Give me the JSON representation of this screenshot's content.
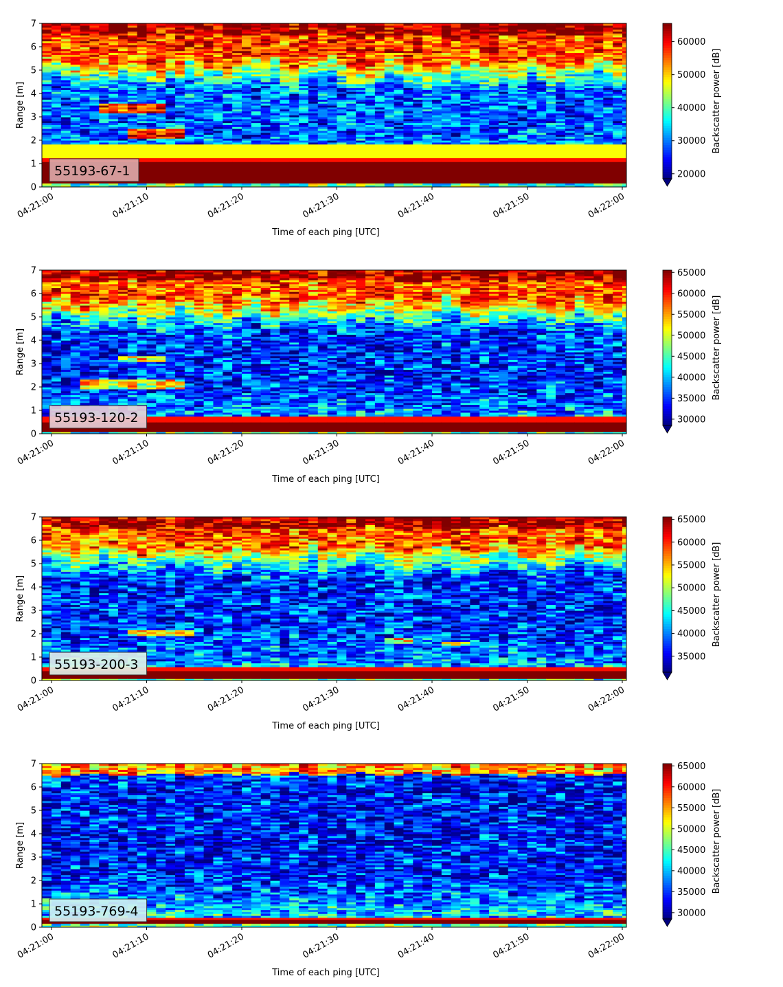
{
  "chart_data": [
    {
      "type": "heatmap",
      "label": "55193-67-1",
      "label_box_color": "#dca8a8",
      "xlabel": "Time of each ping [UTC]",
      "ylabel": "Range [m]",
      "xticks": [
        "04:21:00",
        "04:21:10",
        "04:21:20",
        "04:21:30",
        "04:21:40",
        "04:21:50",
        "04:22:00"
      ],
      "ylim": [
        0,
        7
      ],
      "yticks": [
        0,
        1,
        2,
        3,
        4,
        5,
        6,
        7
      ],
      "colorbar": {
        "label": "Backscatter power [dB]",
        "vmin": 18500,
        "vmax": 65535,
        "ticks": [
          20000,
          30000,
          40000,
          50000,
          60000
        ],
        "extend": "min"
      },
      "profile_shape": "strong",
      "surface_layers": [
        {
          "range": [
            0.2,
            1.05
          ],
          "level": "saturated"
        },
        {
          "range": [
            1.05,
            1.25
          ],
          "level": "high"
        },
        {
          "range": [
            1.25,
            1.8
          ],
          "level": "medium"
        }
      ],
      "upper_layer_from": 4.2,
      "patches": [
        {
          "time": "04:21:08-04:21:13",
          "range": [
            2.1,
            2.5
          ],
          "level": "high"
        },
        {
          "time": "04:21:05-04:21:11",
          "range": [
            3.2,
            3.6
          ],
          "level": "high"
        }
      ]
    },
    {
      "type": "heatmap",
      "label": "55193-120-2",
      "label_box_color": "#e8cfd6",
      "xlabel": "Time of each ping [UTC]",
      "ylabel": "Range [m]",
      "xticks": [
        "04:21:00",
        "04:21:10",
        "04:21:20",
        "04:21:30",
        "04:21:40",
        "04:21:50",
        "04:22:00"
      ],
      "ylim": [
        0,
        7
      ],
      "yticks": [
        0,
        1,
        2,
        3,
        4,
        5,
        6,
        7
      ],
      "colorbar": {
        "label": "Backscatter power [dB]",
        "vmin": 28500,
        "vmax": 65535,
        "ticks": [
          30000,
          35000,
          40000,
          45000,
          50000,
          55000,
          60000,
          65000
        ],
        "extend": "min"
      },
      "profile_shape": "medium",
      "surface_layers": [
        {
          "range": [
            0.1,
            0.5
          ],
          "level": "saturated"
        },
        {
          "range": [
            0.5,
            0.75
          ],
          "level": "high"
        }
      ],
      "upper_layer_from": 4.4,
      "patches": [
        {
          "time": "04:21:03-04:21:13",
          "range": [
            1.9,
            2.3
          ],
          "level": "medium"
        },
        {
          "time": "04:21:07-04:21:11",
          "range": [
            3.1,
            3.3
          ],
          "level": "medium"
        }
      ]
    },
    {
      "type": "heatmap",
      "label": "55193-200-3",
      "label_box_color": "#dff1e8",
      "xlabel": "Time of each ping [UTC]",
      "ylabel": "Range [m]",
      "xticks": [
        "04:21:00",
        "04:21:10",
        "04:21:20",
        "04:21:30",
        "04:21:40",
        "04:21:50",
        "04:22:00"
      ],
      "ylim": [
        0,
        7
      ],
      "yticks": [
        0,
        1,
        2,
        3,
        4,
        5,
        6,
        7
      ],
      "colorbar": {
        "label": "Backscatter power [dB]",
        "vmin": 31500,
        "vmax": 65535,
        "ticks": [
          35000,
          40000,
          45000,
          50000,
          55000,
          60000,
          65000
        ],
        "extend": "min"
      },
      "profile_shape": "medium",
      "surface_layers": [
        {
          "range": [
            0.1,
            0.45
          ],
          "level": "saturated"
        },
        {
          "range": [
            0.45,
            0.6
          ],
          "level": "high"
        }
      ],
      "upper_layer_from": 4.5,
      "patches": [
        {
          "time": "04:21:08-04:21:14",
          "range": [
            1.9,
            2.2
          ],
          "level": "medium"
        },
        {
          "time": "04:21:35-04:21:37",
          "range": [
            1.6,
            1.8
          ],
          "level": "medium"
        },
        {
          "time": "04:21:41-04:21:43",
          "range": [
            1.5,
            1.7
          ],
          "level": "medium"
        }
      ]
    },
    {
      "type": "heatmap",
      "label": "55193-769-4",
      "label_box_color": "#cfeff2",
      "xlabel": "Time of each ping [UTC]",
      "ylabel": "Range [m]",
      "xticks": [
        "04:21:00",
        "04:21:10",
        "04:21:20",
        "04:21:30",
        "04:21:40",
        "04:21:50",
        "04:22:00"
      ],
      "ylim": [
        0,
        7
      ],
      "yticks": [
        0,
        1,
        2,
        3,
        4,
        5,
        6,
        7
      ],
      "colorbar": {
        "label": "Backscatter power [dB]",
        "vmin": 28500,
        "vmax": 65535,
        "ticks": [
          30000,
          35000,
          40000,
          45000,
          50000,
          55000,
          60000,
          65000
        ],
        "extend": "min"
      },
      "profile_shape": "weak",
      "surface_layers": [
        {
          "range": [
            0.18,
            0.3
          ],
          "level": "saturated"
        },
        {
          "range": [
            0.3,
            0.42
          ],
          "level": "high"
        }
      ],
      "upper_layer_from": 6.2,
      "patches": []
    }
  ]
}
